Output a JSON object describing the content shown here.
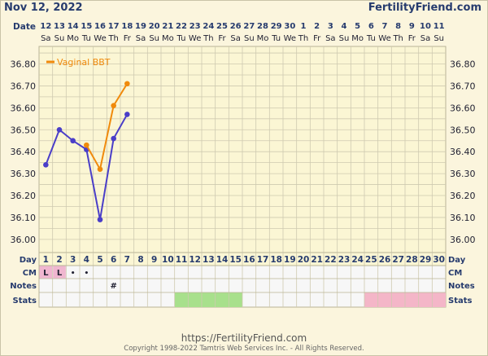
{
  "header": {
    "date": "Nov 12, 2022",
    "site": "FertilityFriend.com"
  },
  "row_labels": {
    "date": "Date",
    "day": "Day",
    "cm": "CM",
    "notes": "Notes",
    "stats": "Stats"
  },
  "footer": {
    "url": "https://FertilityFriend.com",
    "copyright": "Copyright 1998-2022 Tamtris Web Services Inc. - All Rights Reserved."
  },
  "chart_data": {
    "type": "line",
    "dates": [
      "12",
      "13",
      "14",
      "15",
      "16",
      "17",
      "18",
      "19",
      "20",
      "21",
      "22",
      "23",
      "24",
      "25",
      "26",
      "27",
      "28",
      "29",
      "30",
      "1",
      "2",
      "3",
      "4",
      "5",
      "6",
      "7",
      "8",
      "9",
      "10",
      "11"
    ],
    "weekdays": [
      "Sa",
      "Su",
      "Mo",
      "Tu",
      "We",
      "Th",
      "Fr",
      "Sa",
      "Su",
      "Mo",
      "Tu",
      "We",
      "Th",
      "Fr",
      "Sa",
      "Su",
      "Mo",
      "Tu",
      "We",
      "Th",
      "Fr",
      "Sa",
      "Su",
      "Mo",
      "Tu",
      "We",
      "Th",
      "Fr",
      "Sa",
      "Su"
    ],
    "days": [
      "1",
      "2",
      "3",
      "4",
      "5",
      "6",
      "7",
      "8",
      "9",
      "10",
      "11",
      "12",
      "13",
      "14",
      "15",
      "16",
      "17",
      "18",
      "19",
      "20",
      "21",
      "22",
      "23",
      "24",
      "25",
      "26",
      "27",
      "28",
      "29",
      "30"
    ],
    "y_ticks": [
      "36.80",
      "36.70",
      "36.60",
      "36.50",
      "36.40",
      "36.30",
      "36.20",
      "36.10",
      "36.00"
    ],
    "ylim": [
      35.94,
      36.88
    ],
    "series": [
      {
        "name": "",
        "color": "#4a3ec8",
        "values": [
          36.34,
          36.5,
          36.45,
          36.41,
          36.09,
          36.46,
          36.57,
          null,
          null,
          null,
          null,
          null,
          null,
          null,
          null,
          null,
          null,
          null,
          null,
          null,
          null,
          null,
          null,
          null,
          null,
          null,
          null,
          null,
          null,
          null
        ]
      },
      {
        "name": "Vaginal BBT",
        "color": "#f08a0c",
        "values": [
          null,
          null,
          null,
          36.43,
          36.32,
          36.61,
          36.71,
          null,
          null,
          null,
          null,
          null,
          null,
          null,
          null,
          null,
          null,
          null,
          null,
          null,
          null,
          null,
          null,
          null,
          null,
          null,
          null,
          null,
          null,
          null
        ]
      }
    ],
    "cm": [
      "L",
      "L",
      "•",
      "•",
      "",
      "",
      "",
      "",
      "",
      "",
      "",
      "",
      "",
      "",
      "",
      "",
      "",
      "",
      "",
      "",
      "",
      "",
      "",
      "",
      "",
      "",
      "",
      "",
      "",
      ""
    ],
    "notes": [
      "",
      "",
      "",
      "",
      "",
      "#",
      "",
      "",
      "",
      "",
      "",
      "",
      "",
      "",
      "",
      "",
      "",
      "",
      "",
      "",
      "",
      "",
      "",
      "",
      "",
      "",
      "",
      "",
      "",
      ""
    ],
    "stats_bands": [
      {
        "from_day": 11,
        "to_day": 15,
        "color": "#a8e08c"
      },
      {
        "from_day": 25,
        "to_day": 30,
        "color": "#f4b6c8"
      }
    ],
    "grid": true
  }
}
